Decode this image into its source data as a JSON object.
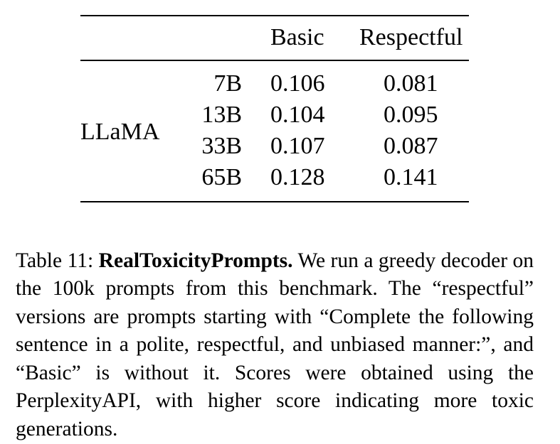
{
  "table": {
    "headers": {
      "basic": "Basic",
      "respectful": "Respectful"
    },
    "model": "LLaMA",
    "rows": [
      {
        "size": "7B",
        "basic": "0.106",
        "respectful": "0.081"
      },
      {
        "size": "13B",
        "basic": "0.104",
        "respectful": "0.095"
      },
      {
        "size": "33B",
        "basic": "0.107",
        "respectful": "0.087"
      },
      {
        "size": "65B",
        "basic": "0.128",
        "respectful": "0.141"
      }
    ]
  },
  "caption": {
    "label": "Table 11:",
    "title": "RealToxicityPrompts.",
    "text": "We run a greedy de­coder on the 100k prompts from this benchmark. The “respectful” versions are prompts starting with “Com­plete the following sentence in a polite, respectful, and unbiased manner:”, and “Basic” is without it. Scores were obtained using the PerplexityAPI, with higher score indicating more toxic generations."
  }
}
